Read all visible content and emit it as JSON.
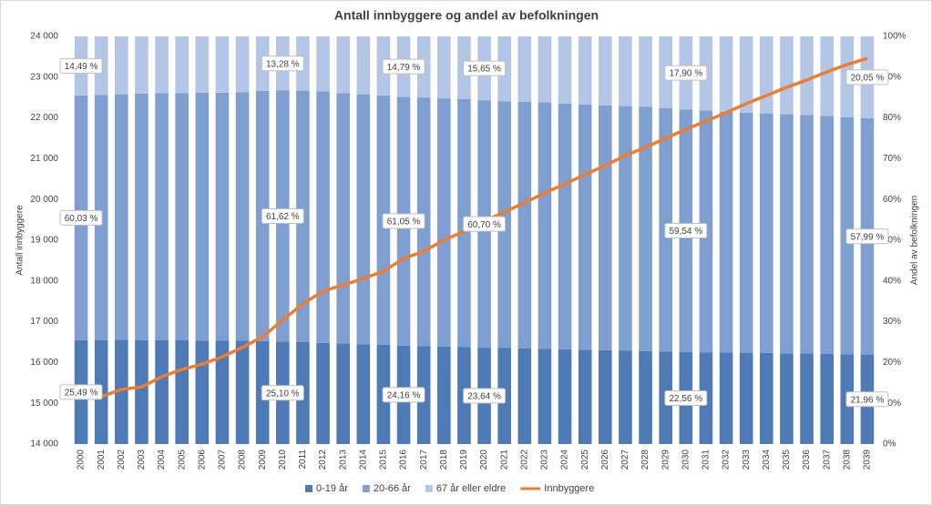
{
  "chart_data": {
    "type": "bar",
    "stacked": true,
    "title": "Antall innbyggere og andel av befolkningen",
    "y_label": "Antall innbyggere",
    "y2_label": "Andel av befolkningen",
    "categories": [
      "2000",
      "2001",
      "2002",
      "2003",
      "2004",
      "2005",
      "2006",
      "2007",
      "2008",
      "2009",
      "2010",
      "2011",
      "2012",
      "2013",
      "2014",
      "2015",
      "2016",
      "2017",
      "2018",
      "2019",
      "2020",
      "2021",
      "2022",
      "2023",
      "2024",
      "2025",
      "2026",
      "2027",
      "2028",
      "2029",
      "2030",
      "2031",
      "2032",
      "2033",
      "2034",
      "2035",
      "2036",
      "2037",
      "2038",
      "2039"
    ],
    "ylim": [
      14000,
      24000
    ],
    "yticks": [
      {
        "value": 14000,
        "label": "14 000"
      },
      {
        "value": 15000,
        "label": "15 000"
      },
      {
        "value": 16000,
        "label": "16 000"
      },
      {
        "value": 17000,
        "label": "17 000"
      },
      {
        "value": 18000,
        "label": "18 000"
      },
      {
        "value": 19000,
        "label": "19 000"
      },
      {
        "value": 20000,
        "label": "20 000"
      },
      {
        "value": 21000,
        "label": "21 000"
      },
      {
        "value": 22000,
        "label": "22 000"
      },
      {
        "value": 23000,
        "label": "23 000"
      },
      {
        "value": 24000,
        "label": "24 000"
      }
    ],
    "y2lim": [
      0,
      100
    ],
    "y2ticks": [
      {
        "value": 0,
        "label": "0%"
      },
      {
        "value": 10,
        "label": "10%"
      },
      {
        "value": 20,
        "label": "20%"
      },
      {
        "value": 30,
        "label": "30%"
      },
      {
        "value": 40,
        "label": "40%"
      },
      {
        "value": 50,
        "label": "50%"
      },
      {
        "value": 60,
        "label": "60%"
      },
      {
        "value": 70,
        "label": "70%"
      },
      {
        "value": 80,
        "label": "80%"
      },
      {
        "value": 90,
        "label": "90%"
      },
      {
        "value": 100,
        "label": "100%"
      }
    ],
    "series": [
      {
        "name": "0-19 år",
        "color": "#4e7ab5",
        "axis": "y2",
        "values": [
          25.49,
          25.5,
          25.55,
          25.5,
          25.45,
          25.45,
          25.4,
          25.4,
          25.35,
          25.25,
          25.1,
          25.0,
          24.8,
          24.65,
          24.5,
          24.35,
          24.16,
          24.0,
          23.9,
          23.78,
          23.64,
          23.55,
          23.45,
          23.35,
          23.25,
          23.15,
          23.05,
          22.95,
          22.8,
          22.68,
          22.56,
          22.5,
          22.45,
          22.4,
          22.35,
          22.25,
          22.2,
          22.1,
          22.03,
          21.96
        ],
        "value_labels": [
          "25,49 %",
          null,
          null,
          null,
          null,
          null,
          null,
          null,
          null,
          null,
          "25,10 %",
          null,
          null,
          null,
          null,
          null,
          "24,16 %",
          null,
          null,
          null,
          "23,64 %",
          null,
          null,
          null,
          null,
          null,
          null,
          null,
          null,
          null,
          "22,56 %",
          null,
          null,
          null,
          null,
          null,
          null,
          null,
          null,
          "21,96 %"
        ]
      },
      {
        "name": "20-66 år",
        "color": "#7f9fd0",
        "axis": "y2",
        "values": [
          60.03,
          60.1,
          60.25,
          60.5,
          60.65,
          60.65,
          60.8,
          60.8,
          60.95,
          61.35,
          61.62,
          61.7,
          61.7,
          61.45,
          61.3,
          61.15,
          61.05,
          61.0,
          60.9,
          60.82,
          60.7,
          60.55,
          60.55,
          60.45,
          60.25,
          60.15,
          60.05,
          59.95,
          59.9,
          59.72,
          59.54,
          59.3,
          59.05,
          58.9,
          58.75,
          58.65,
          58.5,
          58.4,
          58.17,
          57.99
        ],
        "value_labels": [
          "60,03 %",
          null,
          null,
          null,
          null,
          null,
          null,
          null,
          null,
          null,
          "61,62 %",
          null,
          null,
          null,
          null,
          null,
          "61,05 %",
          null,
          null,
          null,
          "60,70 %",
          null,
          null,
          null,
          null,
          null,
          null,
          null,
          null,
          null,
          "59,54 %",
          null,
          null,
          null,
          null,
          null,
          null,
          null,
          null,
          "57,99 %"
        ]
      },
      {
        "name": "67 år eller eldre",
        "color": "#b4c6e5",
        "axis": "y2",
        "values": [
          14.49,
          14.4,
          14.2,
          14.0,
          13.9,
          13.9,
          13.8,
          13.8,
          13.7,
          13.4,
          13.28,
          13.3,
          13.5,
          13.9,
          14.2,
          14.5,
          14.79,
          15.0,
          15.2,
          15.4,
          15.65,
          15.9,
          16.0,
          16.2,
          16.5,
          16.7,
          16.9,
          17.1,
          17.3,
          17.6,
          17.9,
          18.2,
          18.5,
          18.7,
          18.9,
          19.1,
          19.3,
          19.5,
          19.8,
          20.05
        ],
        "value_labels": [
          "14,49 %",
          null,
          null,
          null,
          null,
          null,
          null,
          null,
          null,
          null,
          "13,28 %",
          null,
          null,
          null,
          null,
          null,
          "14,79 %",
          null,
          null,
          null,
          "15,65 %",
          null,
          null,
          null,
          null,
          null,
          null,
          null,
          null,
          null,
          "17,90 %",
          null,
          null,
          null,
          null,
          null,
          null,
          null,
          null,
          "20,05 %"
        ]
      },
      {
        "name": "Innbyggere",
        "color": "#ed7d31",
        "type": "line",
        "values": [
          15205,
          15160,
          15340,
          15400,
          15650,
          15830,
          15960,
          16140,
          16370,
          16630,
          17040,
          17440,
          17750,
          17900,
          18060,
          18240,
          18550,
          18730,
          19000,
          19220,
          19470,
          19690,
          19920,
          20160,
          20380,
          20610,
          20830,
          21080,
          21280,
          21500,
          21720,
          21920,
          22130,
          22350,
          22550,
          22750,
          22930,
          23130,
          23310,
          23460
        ]
      }
    ],
    "legend": "bottom"
  }
}
